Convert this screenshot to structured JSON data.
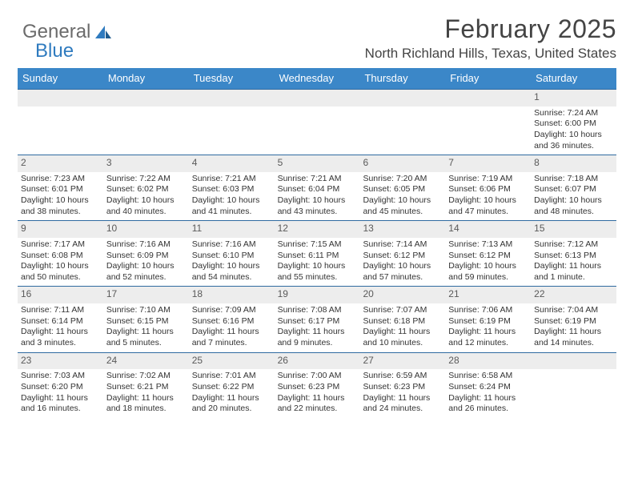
{
  "logo": {
    "word1": "General",
    "word2": "Blue"
  },
  "title": "February 2025",
  "location": "North Richland Hills, Texas, United States",
  "colors": {
    "header_bg": "#3b87c8",
    "header_text": "#ffffff",
    "row_border": "#2f6aa0",
    "daynum_bg": "#ededed",
    "daynum_text": "#5a5a5a",
    "body_text": "#333333",
    "logo_gray": "#6b6b6b",
    "logo_blue": "#2f7bbf"
  },
  "day_headers": [
    "Sunday",
    "Monday",
    "Tuesday",
    "Wednesday",
    "Thursday",
    "Friday",
    "Saturday"
  ],
  "weeks": [
    [
      {
        "n": "",
        "sr": "",
        "ss": "",
        "dl": ""
      },
      {
        "n": "",
        "sr": "",
        "ss": "",
        "dl": ""
      },
      {
        "n": "",
        "sr": "",
        "ss": "",
        "dl": ""
      },
      {
        "n": "",
        "sr": "",
        "ss": "",
        "dl": ""
      },
      {
        "n": "",
        "sr": "",
        "ss": "",
        "dl": ""
      },
      {
        "n": "",
        "sr": "",
        "ss": "",
        "dl": ""
      },
      {
        "n": "1",
        "sr": "Sunrise: 7:24 AM",
        "ss": "Sunset: 6:00 PM",
        "dl": "Daylight: 10 hours and 36 minutes."
      }
    ],
    [
      {
        "n": "2",
        "sr": "Sunrise: 7:23 AM",
        "ss": "Sunset: 6:01 PM",
        "dl": "Daylight: 10 hours and 38 minutes."
      },
      {
        "n": "3",
        "sr": "Sunrise: 7:22 AM",
        "ss": "Sunset: 6:02 PM",
        "dl": "Daylight: 10 hours and 40 minutes."
      },
      {
        "n": "4",
        "sr": "Sunrise: 7:21 AM",
        "ss": "Sunset: 6:03 PM",
        "dl": "Daylight: 10 hours and 41 minutes."
      },
      {
        "n": "5",
        "sr": "Sunrise: 7:21 AM",
        "ss": "Sunset: 6:04 PM",
        "dl": "Daylight: 10 hours and 43 minutes."
      },
      {
        "n": "6",
        "sr": "Sunrise: 7:20 AM",
        "ss": "Sunset: 6:05 PM",
        "dl": "Daylight: 10 hours and 45 minutes."
      },
      {
        "n": "7",
        "sr": "Sunrise: 7:19 AM",
        "ss": "Sunset: 6:06 PM",
        "dl": "Daylight: 10 hours and 47 minutes."
      },
      {
        "n": "8",
        "sr": "Sunrise: 7:18 AM",
        "ss": "Sunset: 6:07 PM",
        "dl": "Daylight: 10 hours and 48 minutes."
      }
    ],
    [
      {
        "n": "9",
        "sr": "Sunrise: 7:17 AM",
        "ss": "Sunset: 6:08 PM",
        "dl": "Daylight: 10 hours and 50 minutes."
      },
      {
        "n": "10",
        "sr": "Sunrise: 7:16 AM",
        "ss": "Sunset: 6:09 PM",
        "dl": "Daylight: 10 hours and 52 minutes."
      },
      {
        "n": "11",
        "sr": "Sunrise: 7:16 AM",
        "ss": "Sunset: 6:10 PM",
        "dl": "Daylight: 10 hours and 54 minutes."
      },
      {
        "n": "12",
        "sr": "Sunrise: 7:15 AM",
        "ss": "Sunset: 6:11 PM",
        "dl": "Daylight: 10 hours and 55 minutes."
      },
      {
        "n": "13",
        "sr": "Sunrise: 7:14 AM",
        "ss": "Sunset: 6:12 PM",
        "dl": "Daylight: 10 hours and 57 minutes."
      },
      {
        "n": "14",
        "sr": "Sunrise: 7:13 AM",
        "ss": "Sunset: 6:12 PM",
        "dl": "Daylight: 10 hours and 59 minutes."
      },
      {
        "n": "15",
        "sr": "Sunrise: 7:12 AM",
        "ss": "Sunset: 6:13 PM",
        "dl": "Daylight: 11 hours and 1 minute."
      }
    ],
    [
      {
        "n": "16",
        "sr": "Sunrise: 7:11 AM",
        "ss": "Sunset: 6:14 PM",
        "dl": "Daylight: 11 hours and 3 minutes."
      },
      {
        "n": "17",
        "sr": "Sunrise: 7:10 AM",
        "ss": "Sunset: 6:15 PM",
        "dl": "Daylight: 11 hours and 5 minutes."
      },
      {
        "n": "18",
        "sr": "Sunrise: 7:09 AM",
        "ss": "Sunset: 6:16 PM",
        "dl": "Daylight: 11 hours and 7 minutes."
      },
      {
        "n": "19",
        "sr": "Sunrise: 7:08 AM",
        "ss": "Sunset: 6:17 PM",
        "dl": "Daylight: 11 hours and 9 minutes."
      },
      {
        "n": "20",
        "sr": "Sunrise: 7:07 AM",
        "ss": "Sunset: 6:18 PM",
        "dl": "Daylight: 11 hours and 10 minutes."
      },
      {
        "n": "21",
        "sr": "Sunrise: 7:06 AM",
        "ss": "Sunset: 6:19 PM",
        "dl": "Daylight: 11 hours and 12 minutes."
      },
      {
        "n": "22",
        "sr": "Sunrise: 7:04 AM",
        "ss": "Sunset: 6:19 PM",
        "dl": "Daylight: 11 hours and 14 minutes."
      }
    ],
    [
      {
        "n": "23",
        "sr": "Sunrise: 7:03 AM",
        "ss": "Sunset: 6:20 PM",
        "dl": "Daylight: 11 hours and 16 minutes."
      },
      {
        "n": "24",
        "sr": "Sunrise: 7:02 AM",
        "ss": "Sunset: 6:21 PM",
        "dl": "Daylight: 11 hours and 18 minutes."
      },
      {
        "n": "25",
        "sr": "Sunrise: 7:01 AM",
        "ss": "Sunset: 6:22 PM",
        "dl": "Daylight: 11 hours and 20 minutes."
      },
      {
        "n": "26",
        "sr": "Sunrise: 7:00 AM",
        "ss": "Sunset: 6:23 PM",
        "dl": "Daylight: 11 hours and 22 minutes."
      },
      {
        "n": "27",
        "sr": "Sunrise: 6:59 AM",
        "ss": "Sunset: 6:23 PM",
        "dl": "Daylight: 11 hours and 24 minutes."
      },
      {
        "n": "28",
        "sr": "Sunrise: 6:58 AM",
        "ss": "Sunset: 6:24 PM",
        "dl": "Daylight: 11 hours and 26 minutes."
      },
      {
        "n": "",
        "sr": "",
        "ss": "",
        "dl": ""
      }
    ]
  ]
}
